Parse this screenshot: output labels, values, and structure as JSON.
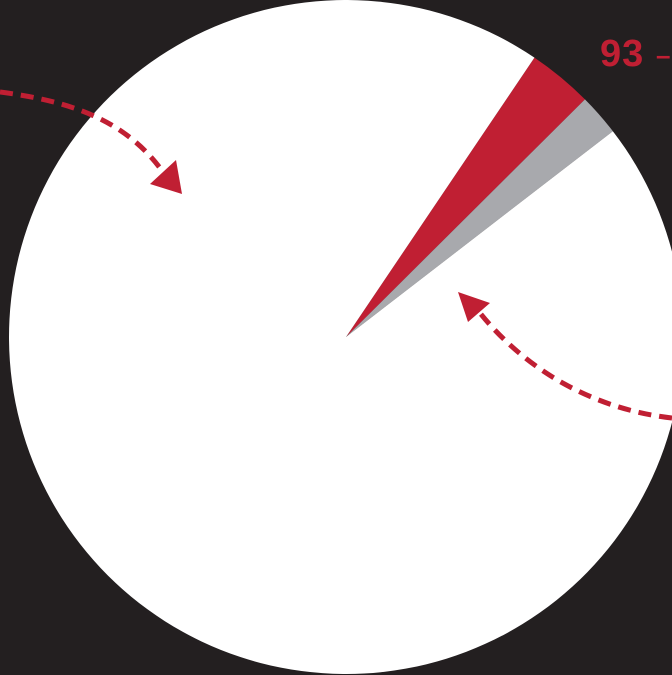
{
  "chart_data": {
    "type": "pie",
    "title": "",
    "slices": [
      {
        "label": "",
        "value": 93,
        "color": "#c01f33"
      },
      {
        "label": "",
        "value": 60,
        "color": "#a8a9ad"
      },
      {
        "label": "",
        "value": 2847,
        "color": "#ffffff"
      }
    ],
    "callout": {
      "text": "93",
      "dash": "–",
      "color": "#c01f33"
    },
    "start_angle_deg": 34,
    "arrows": [
      {
        "name": "arrow-left-to-majority",
        "color": "#c01f33"
      },
      {
        "name": "arrow-right-to-wedge",
        "color": "#c01f33"
      }
    ],
    "background": "#231f20"
  }
}
